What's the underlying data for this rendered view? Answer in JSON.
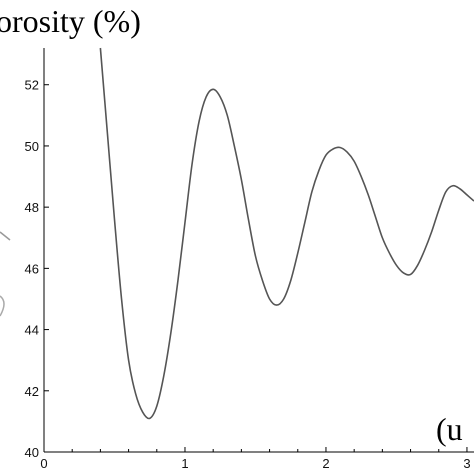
{
  "chart_data": {
    "type": "line",
    "ylabel": "orosity (%)",
    "xlabel": "(u",
    "x_ticks": [
      "0",
      "1",
      "2",
      "3"
    ],
    "y_ticks": [
      "40",
      "42",
      "44",
      "46",
      "48",
      "50",
      "52"
    ],
    "xlim": [
      0,
      3.05
    ],
    "ylim": [
      40,
      53.2
    ],
    "series": [
      {
        "x": [
          0.4,
          0.45,
          0.5,
          0.55,
          0.6,
          0.65,
          0.7,
          0.75,
          0.8,
          0.85,
          0.9,
          0.95,
          1.0,
          1.05,
          1.1,
          1.15,
          1.2,
          1.25,
          1.3,
          1.35,
          1.4,
          1.45,
          1.5,
          1.55,
          1.6,
          1.65,
          1.7,
          1.75,
          1.8,
          1.85,
          1.9,
          1.95,
          2.0,
          2.05,
          2.1,
          2.15,
          2.2,
          2.25,
          2.3,
          2.35,
          2.4,
          2.45,
          2.5,
          2.55,
          2.6,
          2.65,
          2.7,
          2.75,
          2.8,
          2.85,
          2.9,
          2.95,
          3.0,
          3.05
        ],
        "y": [
          53.2,
          50.4,
          47.6,
          45.0,
          43.0,
          41.9,
          41.3,
          41.1,
          41.5,
          42.5,
          43.9,
          45.6,
          47.5,
          49.4,
          50.8,
          51.6,
          51.85,
          51.6,
          51.0,
          50.0,
          48.9,
          47.6,
          46.4,
          45.6,
          45.0,
          44.8,
          45.0,
          45.6,
          46.5,
          47.5,
          48.5,
          49.2,
          49.7,
          49.9,
          49.95,
          49.8,
          49.5,
          49.0,
          48.4,
          47.7,
          47.0,
          46.5,
          46.1,
          45.85,
          45.8,
          46.1,
          46.6,
          47.2,
          47.9,
          48.5,
          48.7,
          48.6,
          48.4,
          48.2
        ]
      }
    ],
    "line_color": "#555555",
    "grid": false
  }
}
